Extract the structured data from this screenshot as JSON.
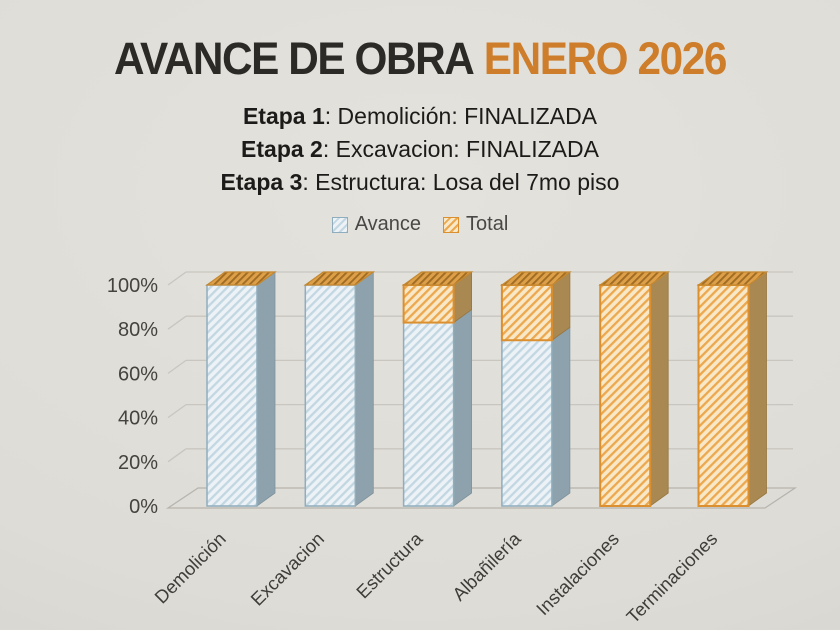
{
  "title": {
    "main": "AVANCE DE OBRA",
    "highlight": "ENERO 2026"
  },
  "stages": [
    {
      "label": "Etapa 1",
      "text": ": Demolición: FINALIZADA"
    },
    {
      "label": "Etapa 2",
      "text": ": Excavacion: FINALIZADA"
    },
    {
      "label": "Etapa 3",
      "text": ": Estructura: Losa del 7mo piso"
    }
  ],
  "legend": {
    "items": [
      {
        "name": "Avance",
        "swatch": "blue-hatch"
      },
      {
        "name": "Total",
        "swatch": "orange-hatch"
      }
    ]
  },
  "chart_data": {
    "type": "bar",
    "subtype": "3d-stacked-percentage-columns",
    "projection": "3d",
    "title": "AVANCE DE OBRA ENERO 2026",
    "categories": [
      "Demolición",
      "Excavacion",
      "Estructura",
      "Albañilería",
      "Instalaciones",
      "Terminaciones"
    ],
    "series": [
      {
        "name": "Avance",
        "values": [
          100,
          100,
          83,
          75,
          0,
          0
        ]
      },
      {
        "name": "Total",
        "values": [
          0,
          0,
          17,
          25,
          100,
          100
        ]
      }
    ],
    "xlabel": "",
    "ylabel": "",
    "ytick_labels": [
      "0%",
      "20%",
      "40%",
      "60%",
      "80%",
      "100%"
    ],
    "ylim": [
      0,
      100
    ],
    "grid": true,
    "legend_position": "top"
  },
  "colors": {
    "background": "#dfddd7",
    "title-text": "#2b2a27",
    "title-accent": "#ce7d2b",
    "subtitle-text": "#1c1b19",
    "legend-text": "#4a4846",
    "axis-text": "#45433f",
    "gridline": "#c8c6bf",
    "floor-line": "#b6b4ad",
    "avance-fill": "#ecf2f6",
    "avance-hatch": "#c2d7e2",
    "avance-border": "#8fadbd",
    "avance-side": "#8da2ac",
    "total-fill": "#f8e8c7",
    "total-hatch": "#eca84e",
    "total-border": "#dc8f2f",
    "total-side": "#aa8852",
    "total-top": "#dd9f48",
    "total-top-hatch": "#a06c24",
    "total-top-edge": "#c5882f"
  }
}
